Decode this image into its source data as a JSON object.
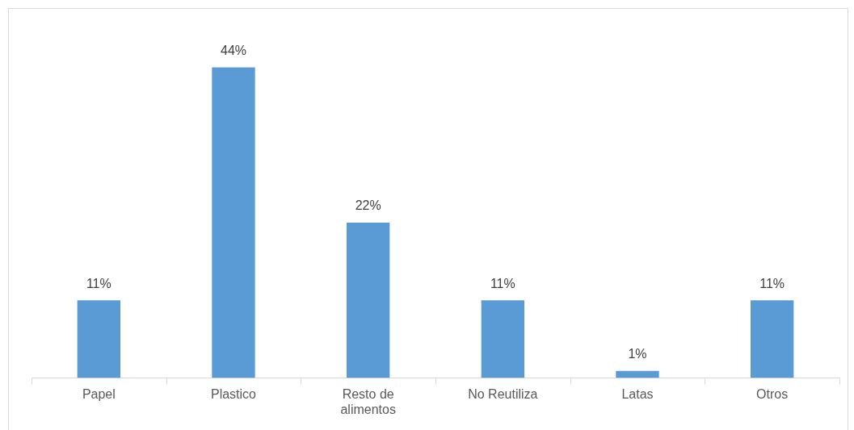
{
  "chart_data": {
    "type": "bar",
    "categories": [
      "Papel",
      "Plastico",
      "Resto de alimentos",
      "No Reutiliza",
      "Latas",
      "Otros"
    ],
    "values": [
      11,
      44,
      22,
      11,
      1,
      11
    ],
    "value_labels": [
      "11%",
      "44%",
      "22%",
      "11%",
      "1%",
      "11%"
    ],
    "color": "#5b9bd5",
    "grid": false,
    "legend": false
  }
}
